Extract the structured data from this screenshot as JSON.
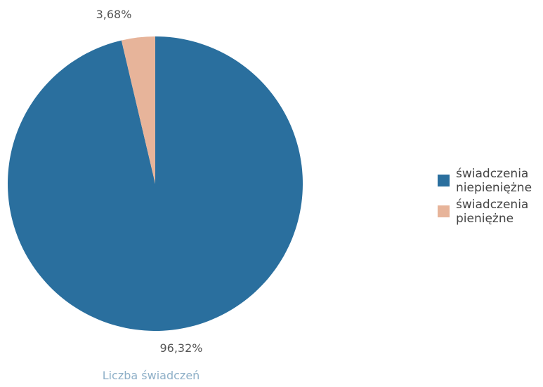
{
  "chart_data": {
    "type": "pie",
    "title": "Liczba świadczeń",
    "legend_position": "right",
    "slices": [
      {
        "label": "świadczenia niepieniężne",
        "legend_lines": [
          "świadczenia",
          "niepieniężne"
        ],
        "value": 96.32,
        "value_label": "96,32%",
        "color": "#2a6f9e"
      },
      {
        "label": "świadczenia pieniężne",
        "legend_lines": [
          "świadczenia",
          "pieniężne"
        ],
        "value": 3.68,
        "value_label": "3,68%",
        "color": "#e7b49a"
      }
    ]
  }
}
